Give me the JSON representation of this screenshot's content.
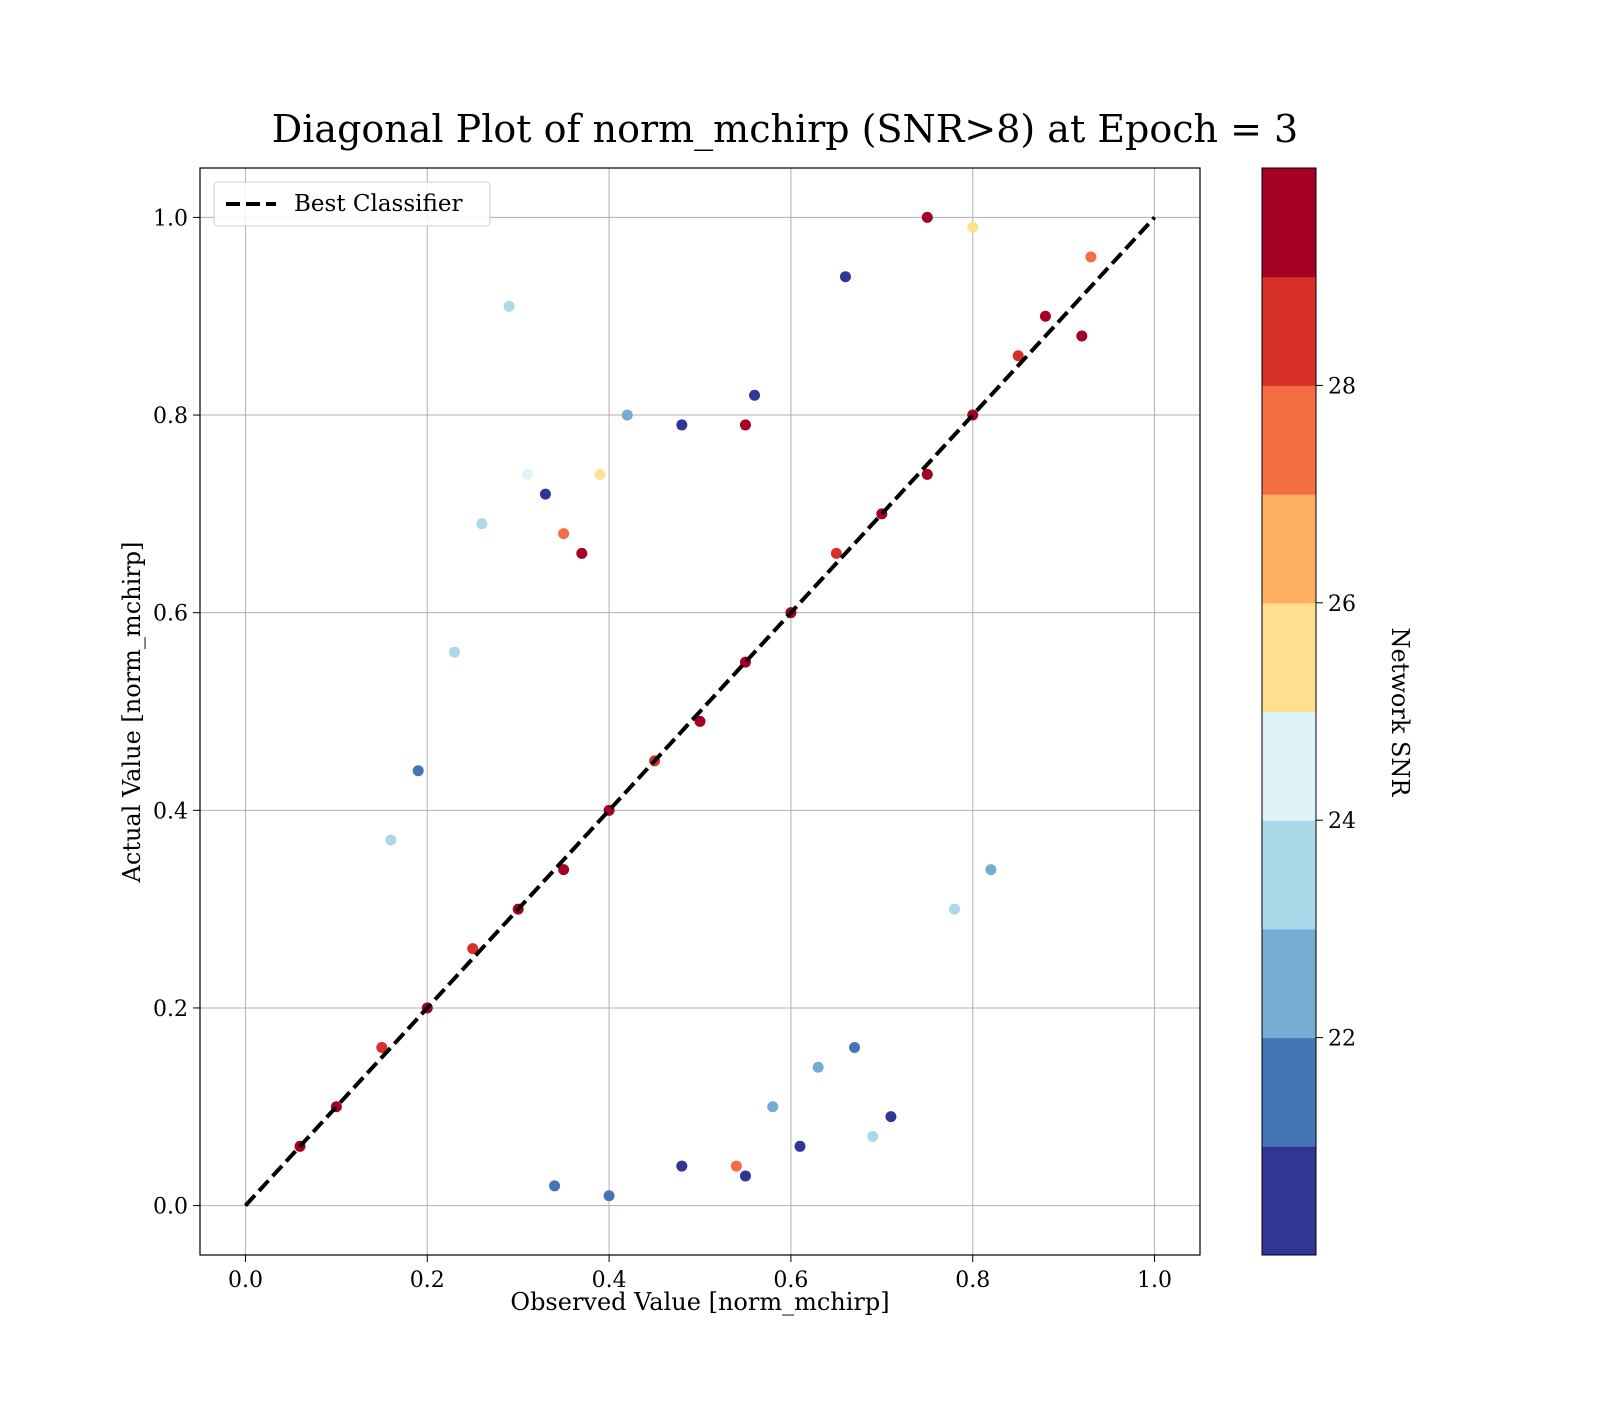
{
  "chart_data": {
    "type": "scatter",
    "title": "Diagonal Plot of norm_mchirp (SNR>8) at Epoch = 3",
    "xlabel": "Observed Value [norm_mchirp]",
    "ylabel": "Actual Value [norm_mchirp]",
    "xlim": [
      -0.05,
      1.05
    ],
    "ylim": [
      -0.05,
      1.05
    ],
    "xticks": [
      "0.0",
      "0.2",
      "0.4",
      "0.6",
      "0.8",
      "1.0"
    ],
    "yticks": [
      "0.0",
      "0.2",
      "0.4",
      "0.6",
      "0.8",
      "1.0"
    ],
    "grid": true,
    "legend": {
      "placement": "upper-left",
      "entries": [
        {
          "label": "Best Classifier",
          "style": "dashed",
          "color": "#000000"
        }
      ]
    },
    "reference_line": {
      "label": "Best Classifier",
      "x": [
        0.0,
        1.0
      ],
      "y": [
        0.0,
        1.0
      ]
    },
    "colorbar": {
      "label": "Network SNR",
      "range": [
        20.0,
        30.0
      ],
      "ticks": [
        "22",
        "24",
        "26",
        "28"
      ],
      "colors": [
        "#313695",
        "#4575b4",
        "#74add1",
        "#abd9e9",
        "#e0f3f8",
        "#fee090",
        "#fdae61",
        "#f46d43",
        "#d73027",
        "#a50026"
      ]
    },
    "series": [
      {
        "color_by": "Network SNR",
        "points": [
          [
            0.06,
            0.06,
            29.5
          ],
          [
            0.1,
            0.1,
            29.0
          ],
          [
            0.15,
            0.16,
            28.5
          ],
          [
            0.2,
            0.2,
            29.5
          ],
          [
            0.25,
            0.26,
            28.0
          ],
          [
            0.3,
            0.3,
            29.5
          ],
          [
            0.35,
            0.34,
            29.0
          ],
          [
            0.4,
            0.4,
            29.5
          ],
          [
            0.45,
            0.45,
            28.5
          ],
          [
            0.5,
            0.49,
            29.5
          ],
          [
            0.55,
            0.55,
            29.0
          ],
          [
            0.6,
            0.6,
            29.5
          ],
          [
            0.65,
            0.66,
            28.5
          ],
          [
            0.7,
            0.7,
            29.5
          ],
          [
            0.75,
            0.74,
            29.0
          ],
          [
            0.8,
            0.8,
            29.5
          ],
          [
            0.85,
            0.86,
            28.5
          ],
          [
            0.88,
            0.9,
            29.5
          ],
          [
            0.29,
            0.91,
            23.5
          ],
          [
            0.66,
            0.94,
            20.5
          ],
          [
            0.56,
            0.82,
            20.5
          ],
          [
            0.42,
            0.8,
            22.5
          ],
          [
            0.48,
            0.79,
            20.5
          ],
          [
            0.55,
            0.79,
            29.5
          ],
          [
            0.31,
            0.74,
            24.5
          ],
          [
            0.39,
            0.74,
            25.5
          ],
          [
            0.33,
            0.72,
            20.5
          ],
          [
            0.26,
            0.69,
            23.5
          ],
          [
            0.37,
            0.66,
            29.5
          ],
          [
            0.35,
            0.68,
            27.5
          ],
          [
            0.23,
            0.56,
            23.5
          ],
          [
            0.19,
            0.44,
            21.5
          ],
          [
            0.16,
            0.37,
            23.5
          ],
          [
            0.71,
            0.09,
            20.5
          ],
          [
            0.61,
            0.06,
            20.5
          ],
          [
            0.69,
            0.07,
            23.5
          ],
          [
            0.58,
            0.1,
            22.5
          ],
          [
            0.67,
            0.16,
            21.5
          ],
          [
            0.63,
            0.14,
            22.5
          ],
          [
            0.82,
            0.34,
            22.5
          ],
          [
            0.78,
            0.3,
            23.5
          ],
          [
            0.54,
            0.04,
            27.5
          ],
          [
            0.55,
            0.03,
            20.5
          ],
          [
            0.4,
            0.01,
            21.5
          ],
          [
            0.48,
            0.04,
            20.5
          ],
          [
            0.34,
            0.02,
            21.5
          ],
          [
            0.75,
            1.0,
            29.5
          ],
          [
            0.8,
            0.99,
            25.5
          ],
          [
            0.93,
            0.96,
            27.5
          ],
          [
            0.92,
            0.88,
            29.5
          ]
        ]
      }
    ]
  }
}
